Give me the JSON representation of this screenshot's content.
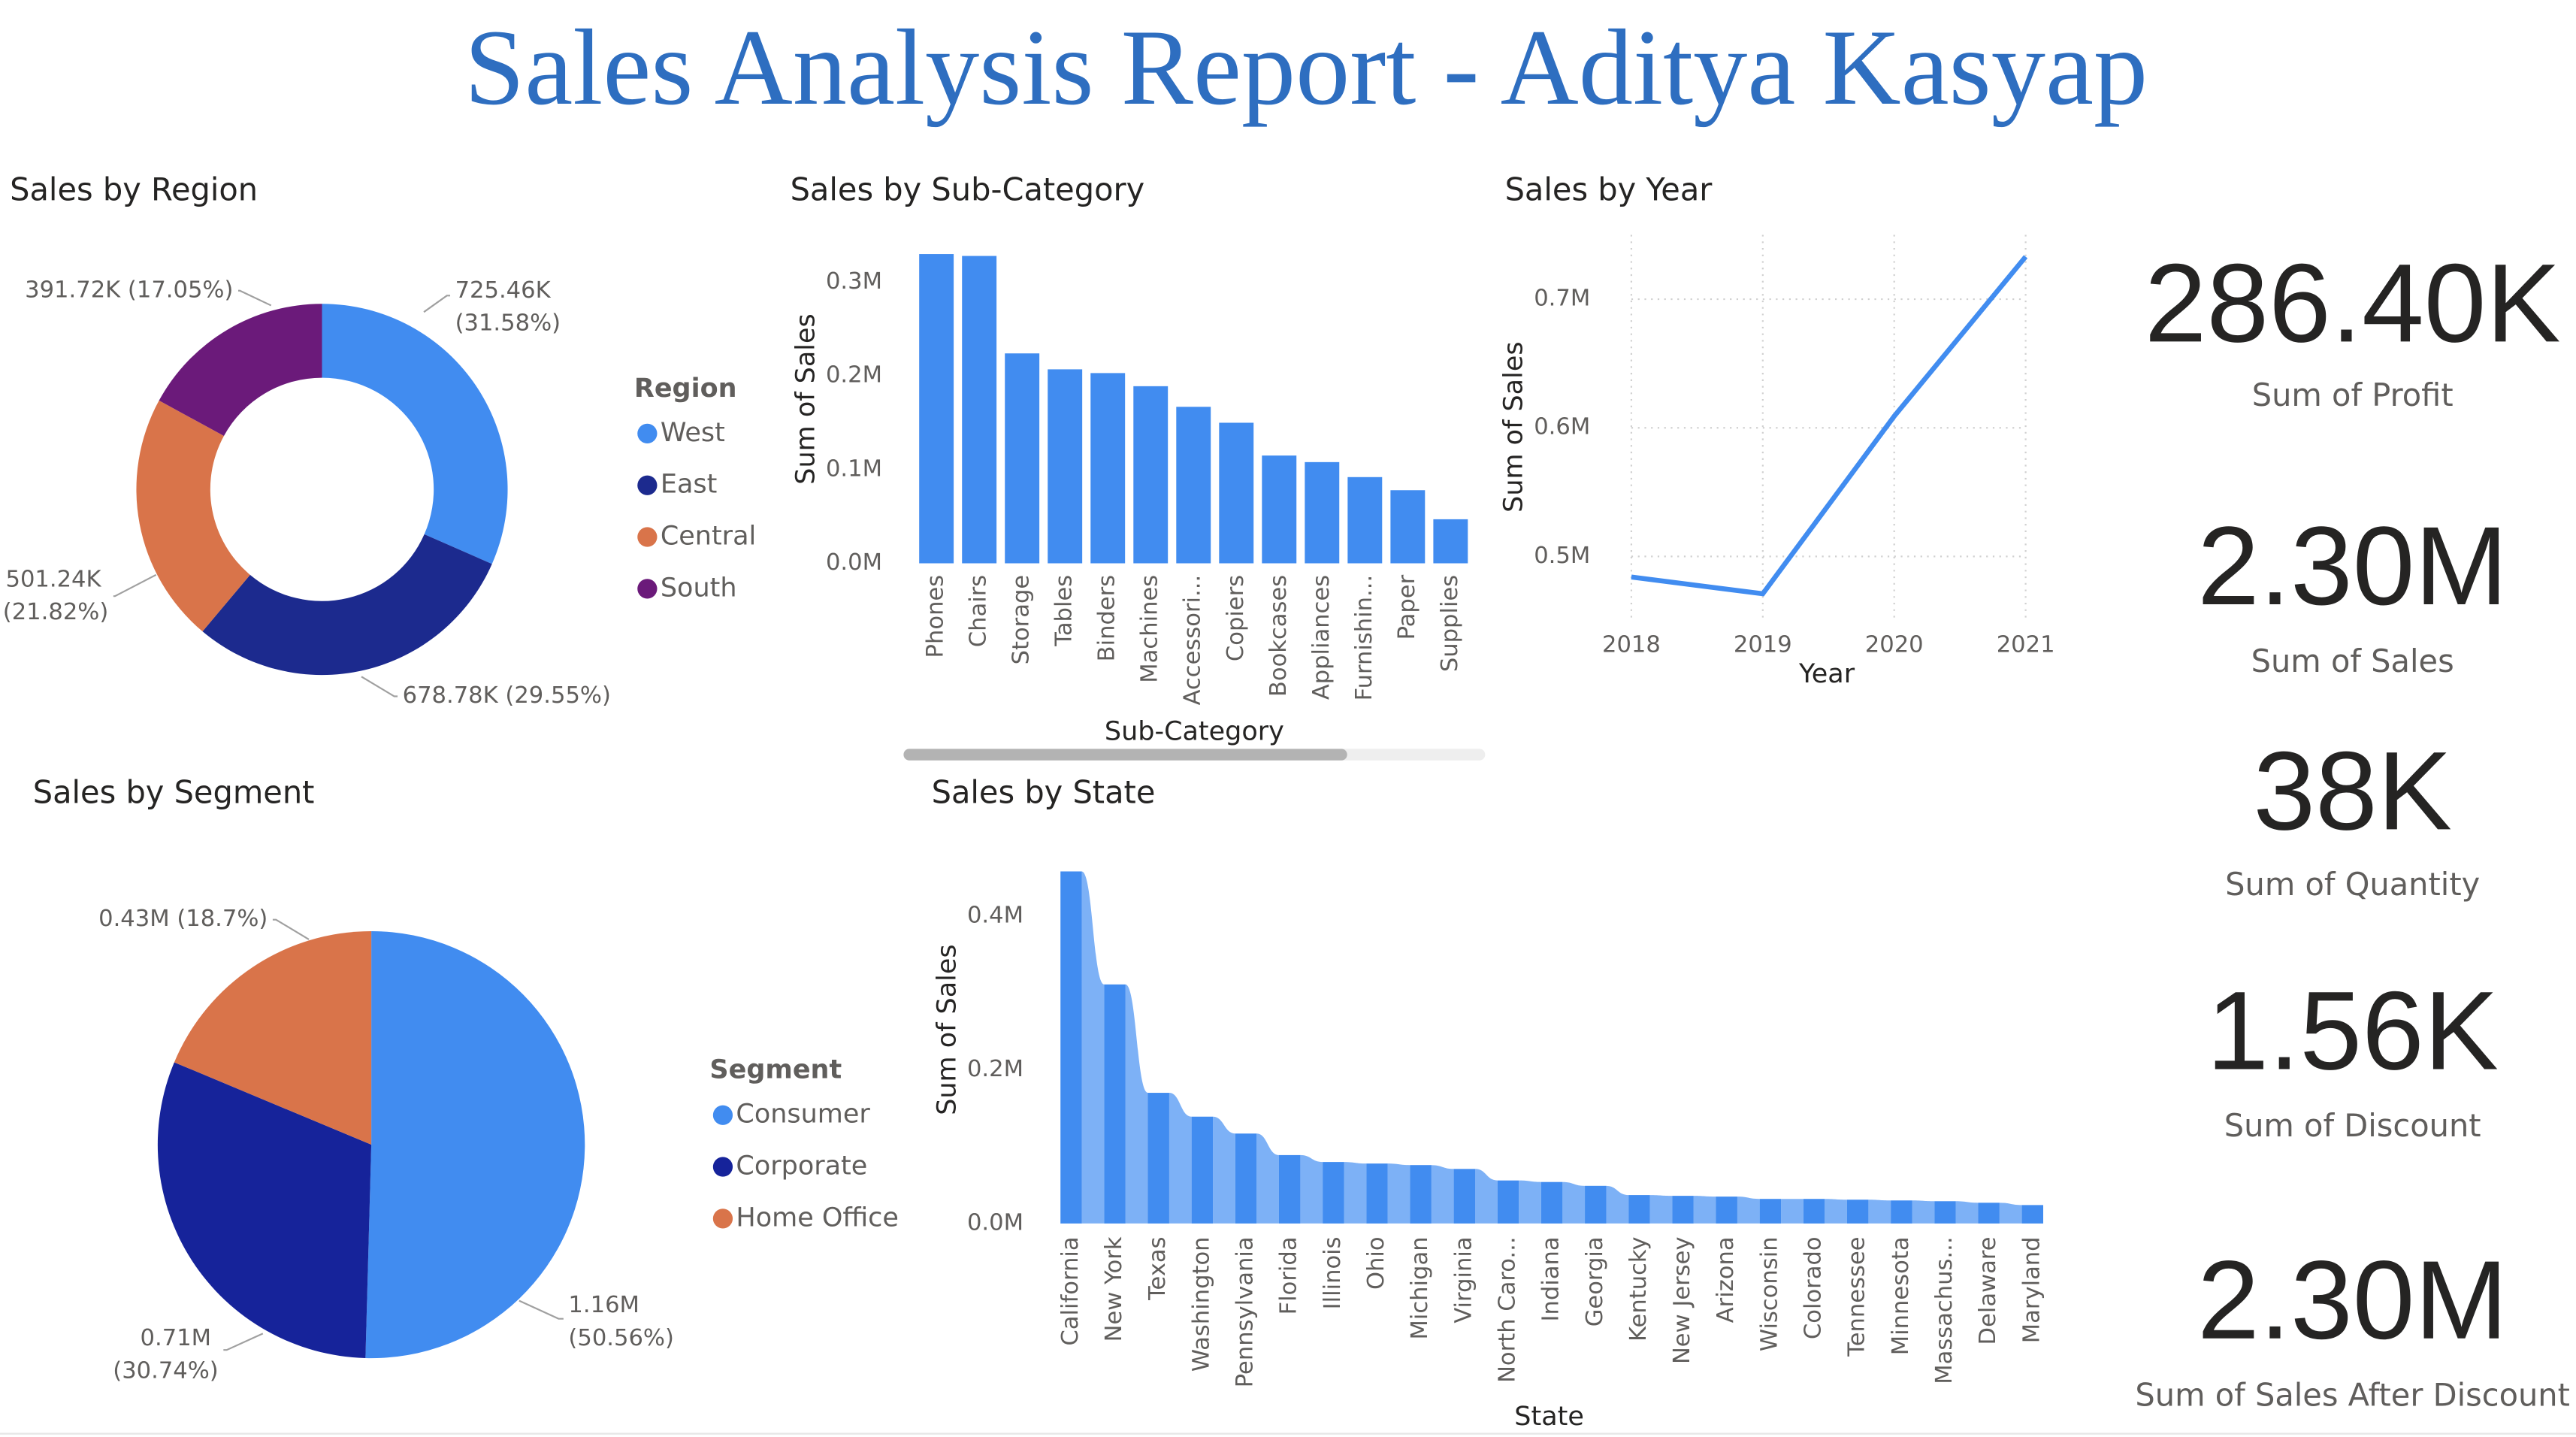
{
  "title": "Sales Analysis Report - Aditya Kasyap",
  "chart_data": [
    {
      "type": "donut",
      "title": "Sales by Region",
      "legend_title": "Region",
      "categories": [
        "West",
        "East",
        "Central",
        "South"
      ],
      "values": [
        725460,
        678780,
        501240,
        391720
      ],
      "value_labels": [
        "725.46K (31.58%)",
        "678.78K (29.55%)",
        "501.24K (21.82%)",
        "391.72K (17.05%)"
      ],
      "colors": [
        "#418CF0",
        "#1C2A8E",
        "#D9744A",
        "#6B1A7A"
      ]
    },
    {
      "type": "bar",
      "title": "Sales by Sub-Category",
      "x_label": "Sub-Category",
      "y_label": "Sum of Sales",
      "categories": [
        "Phones",
        "Chairs",
        "Storage",
        "Tables",
        "Binders",
        "Machines",
        "Accessori...",
        "Copiers",
        "Bookcases",
        "Appliances",
        "Furnishin...",
        "Paper",
        "Supplies"
      ],
      "values": [
        330000,
        328000,
        224000,
        207000,
        203000,
        189000,
        167000,
        150000,
        115000,
        108000,
        92000,
        78000,
        47000
      ],
      "color": "#418CF0",
      "ylim": [
        0,
        340000
      ],
      "yticks": [
        {
          "value": 0,
          "label": "0.0M"
        },
        {
          "value": 100000,
          "label": "0.1M"
        },
        {
          "value": 200000,
          "label": "0.2M"
        },
        {
          "value": 300000,
          "label": "0.3M"
        }
      ]
    },
    {
      "type": "line",
      "title": "Sales by Year",
      "x_label": "Year",
      "y_label": "Sum of Sales",
      "x": [
        2018,
        2019,
        2020,
        2021
      ],
      "values": [
        484000,
        471000,
        609000,
        733000
      ],
      "color": "#418CF0",
      "xlim": [
        2018,
        2021
      ],
      "xticks": [
        2018,
        2019,
        2020,
        2021
      ],
      "ylim": [
        450000,
        750000
      ],
      "yticks": [
        {
          "value": 500000,
          "label": "0.5M"
        },
        {
          "value": 600000,
          "label": "0.6M"
        },
        {
          "value": 700000,
          "label": "0.7M"
        }
      ],
      "grid": true
    },
    {
      "type": "pie",
      "title": "Sales by Segment",
      "legend_title": "Segment",
      "categories": [
        "Consumer",
        "Corporate",
        "Home Office"
      ],
      "values": [
        1160000,
        710000,
        430000
      ],
      "value_labels": [
        "1.16M (50.56%)",
        "0.71M (30.74%)",
        "0.43M (18.7%)"
      ],
      "colors": [
        "#418CF0",
        "#16239A",
        "#D9744A"
      ]
    },
    {
      "type": "ribbon",
      "title": "Sales by State",
      "x_label": "State",
      "y_label": "Sum of Sales",
      "categories": [
        "California",
        "New York",
        "Texas",
        "Washington",
        "Pennsylvania",
        "Florida",
        "Illinois",
        "Ohio",
        "Michigan",
        "Virginia",
        "North Caro...",
        "Indiana",
        "Georgia",
        "Kentucky",
        "New Jersey",
        "Arizona",
        "Wisconsin",
        "Colorado",
        "Tennessee",
        "Minnesota",
        "Massachus...",
        "Delaware",
        "Maryland"
      ],
      "values": [
        458000,
        311000,
        170000,
        139000,
        117000,
        89000,
        80000,
        78000,
        76000,
        71000,
        56000,
        54000,
        49000,
        37000,
        36000,
        35000,
        32000,
        32000,
        31000,
        30000,
        29000,
        27000,
        24000
      ],
      "color": "#418CF0",
      "ribbon_color": "#7DB1F6",
      "ylim": [
        0,
        470000
      ],
      "yticks": [
        {
          "value": 0,
          "label": "0.0M"
        },
        {
          "value": 200000,
          "label": "0.2M"
        },
        {
          "value": 400000,
          "label": "0.4M"
        }
      ]
    }
  ],
  "cards": [
    {
      "value": "286.40K",
      "label": "Sum of Profit"
    },
    {
      "value": "2.30M",
      "label": "Sum of Sales"
    },
    {
      "value": "38K",
      "label": "Sum of Quantity"
    },
    {
      "value": "1.56K",
      "label": "Sum of Discount"
    },
    {
      "value": "2.30M",
      "label": "Sum of Sales After Discount"
    }
  ]
}
